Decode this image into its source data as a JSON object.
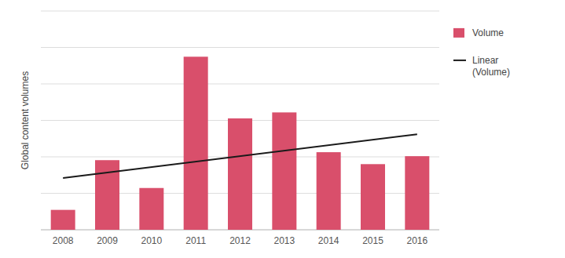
{
  "chart_data": {
    "type": "bar",
    "y_label": "Global content volumes",
    "categories": [
      "2008",
      "2009",
      "2010",
      "2011",
      "2012",
      "2013",
      "2014",
      "2015",
      "2016"
    ],
    "series": [
      {
        "name": "Volume",
        "type": "bar",
        "color": "#d94f6b",
        "values": [
          1.0,
          3.5,
          2.1,
          8.7,
          5.6,
          5.9,
          3.9,
          3.3,
          3.7
        ]
      },
      {
        "name": "Linear\n(Volume)",
        "type": "line",
        "color": "#1a1a1a",
        "x": [
          "2008",
          "2016"
        ],
        "values": [
          2.6,
          4.8
        ]
      }
    ],
    "ylim": [
      0,
      11
    ],
    "yticks": [
      0,
      1.8333333333333333,
      3.6666666666666665,
      5.5,
      7.333333333333333,
      9.166666666666666,
      11
    ],
    "grid": true,
    "tick_labels": "x",
    "legend": "right"
  }
}
